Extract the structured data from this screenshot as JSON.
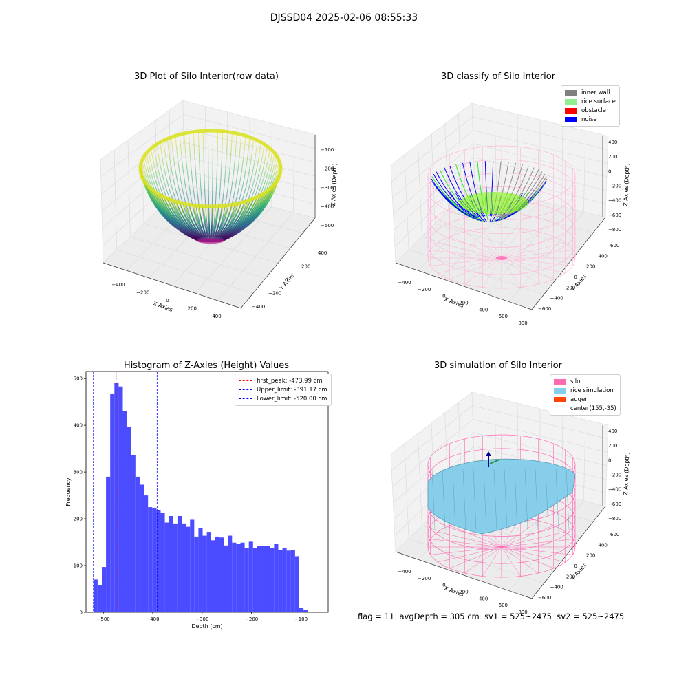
{
  "figure": {
    "suptitle": "DJSSD04 2025-02-06 08:55:33",
    "footer": "flag = 11  avgDepth = 305 cm  sv1 = 525~2475  sv2 = 525~2475"
  },
  "panels": {
    "raw": {
      "title": "3D Plot of Silo Interior(row data)",
      "xlabel": "X Axies",
      "ylabel": "Y Axies",
      "zlabel": "Z Axies (Depth)",
      "xticks": [
        "−400",
        "−200",
        "0",
        "200",
        "400"
      ],
      "yticks": [
        "−400",
        "−200",
        "0",
        "200",
        "400"
      ],
      "zticks": [
        "−100",
        "−200",
        "−300",
        "−400",
        "−500"
      ]
    },
    "classify": {
      "title": "3D classify of Silo Interior",
      "xlabel": "X Axies",
      "ylabel": "Y Axies",
      "zlabel": "Z Axies (Depth)",
      "xticks": [
        "−400",
        "−200",
        "0",
        "200",
        "400",
        "600",
        "800"
      ],
      "yticks": [
        "−600",
        "−400",
        "−200",
        "0",
        "200",
        "400",
        "600"
      ],
      "zticks": [
        "400",
        "200",
        "0",
        "−200",
        "−400",
        "−600",
        "−800"
      ],
      "legend": [
        {
          "label": "inner wall",
          "color": "#808080"
        },
        {
          "label": "rice surface",
          "color": "#90ee90"
        },
        {
          "label": "obstacle",
          "color": "#ff0000"
        },
        {
          "label": "noise",
          "color": "#0000ff"
        }
      ]
    },
    "simulation": {
      "title": "3D simulation of Silo Interior",
      "xlabel": "X Axies",
      "ylabel": "Y Axies",
      "zlabel": "Z Axies (Depth)",
      "xticks": [
        "−400",
        "−200",
        "0",
        "200",
        "400",
        "600",
        "800"
      ],
      "yticks": [
        "−600",
        "−400",
        "−200",
        "0",
        "200",
        "400",
        "600"
      ],
      "zticks": [
        "400",
        "200",
        "0",
        "−200",
        "−400",
        "−600",
        "−800"
      ],
      "legend": [
        {
          "label": "silo",
          "color": "#ff69b4"
        },
        {
          "label": "rice simulation",
          "color": "#87ceeb"
        },
        {
          "label": "auger",
          "color": "#ff4500"
        },
        {
          "label": "center(155,-35)",
          "color": ""
        }
      ]
    }
  },
  "chart_data": {
    "type": "bar",
    "title": "Histogram of Z-Axies (Height) Values",
    "xlabel": "Depth (cm)",
    "ylabel": "Frequency",
    "xlim": [
      -535,
      -45
    ],
    "ylim": [
      0,
      515
    ],
    "xticks": [
      -500,
      -400,
      -300,
      -200,
      -100
    ],
    "yticks": [
      0,
      100,
      200,
      300,
      400,
      500
    ],
    "bar_color": "#4b4bff",
    "bin_start": -520,
    "bin_width": 8.5,
    "values": [
      70,
      58,
      97,
      290,
      468,
      490,
      483,
      430,
      397,
      337,
      290,
      273,
      250,
      225,
      223,
      219,
      213,
      192,
      206,
      190,
      206,
      190,
      183,
      198,
      162,
      180,
      164,
      172,
      154,
      162,
      160,
      143,
      164,
      149,
      147,
      149,
      137,
      151,
      137,
      142,
      142,
      142,
      138,
      147,
      133,
      137,
      132,
      133,
      120,
      10,
      5
    ],
    "vlines": [
      {
        "x": -473.99,
        "color": "#ff0000",
        "label": "first_peak: -473.99 cm"
      },
      {
        "x": -391.17,
        "color": "#0000ff",
        "label": "Upper_limit: -391.17 cm"
      },
      {
        "x": -520.0,
        "color": "#0000ff",
        "label": "Lower_limit: -520.00 cm"
      }
    ],
    "legend_position": "upper right"
  }
}
